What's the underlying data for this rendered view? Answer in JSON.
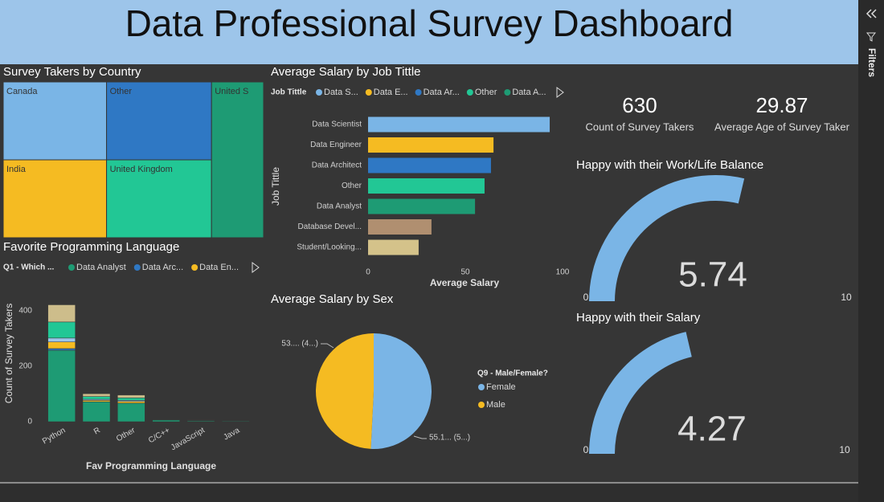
{
  "header": {
    "title": "Data Professional Survey Dashboard"
  },
  "filters_pane": {
    "label": "Filters"
  },
  "cards": [
    {
      "value": 630,
      "label": "Count of Survey Takers"
    },
    {
      "value": 29.87,
      "label": "Average Age of Survey Taker"
    }
  ],
  "chart_data": [
    {
      "type": "treemap",
      "title": "Survey Takers by Country",
      "categories": [
        "Canada",
        "Other",
        "United S",
        "India",
        "United Kingdom"
      ],
      "values": [
        125,
        127,
        126,
        125,
        127
      ],
      "colors": [
        "#7ab5e6",
        "#2f78c4",
        "#1e9b74",
        "#f5bb22",
        "#22c795"
      ]
    },
    {
      "type": "stacked_bar",
      "title": "Favorite Programming Language",
      "legend_title": "Q1 - Which ...",
      "x_label": "Fav Programming Language",
      "y_label": "Count of Survey Takers",
      "categories": [
        "Python",
        "R",
        "Other",
        "C/C++",
        "JavaScript",
        "Java"
      ],
      "series": [
        {
          "name": "Data Analyst",
          "color": "#1e9b74",
          "values": [
            258,
            72,
            67,
            6,
            3,
            2
          ]
        },
        {
          "name": "Data Arc...",
          "color": "#2f78c4",
          "values": [
            6,
            0,
            0,
            0,
            0,
            0
          ]
        },
        {
          "name": "Data En...",
          "color": "#f5bb22",
          "values": [
            24,
            5,
            6,
            0,
            1,
            0
          ]
        },
        {
          "color": "#9cc6ea",
          "values": [
            14,
            4,
            4,
            1,
            0,
            0
          ]
        },
        {
          "color": "#22c795",
          "values": [
            58,
            10,
            9,
            1,
            1,
            0
          ]
        },
        {
          "color": "#cdbd8b",
          "values": [
            62,
            10,
            10,
            0,
            1,
            0
          ]
        }
      ],
      "ylim": [
        0,
        435
      ],
      "yticks": [
        0,
        200,
        400
      ]
    },
    {
      "type": "hbar",
      "title": "Average Salary by Job Tittle",
      "x_label": "Average Salary",
      "y_label": "Job Tittle",
      "legend": {
        "title": "Job Tittle",
        "labels": [
          "Data S...",
          "Data E...",
          "Data Ar...",
          "Other",
          "Data A..."
        ]
      },
      "categories": [
        "Data Scientist",
        "Data Engineer",
        "Data Architect",
        "Other",
        "Data Analyst",
        "Database Devel...",
        "Student/Looking..."
      ],
      "values": [
        93.4,
        64.5,
        63.2,
        59.9,
        55.0,
        32.6,
        26.0
      ],
      "colors": [
        "#7ab5e6",
        "#f5bb22",
        "#2f78c4",
        "#22c795",
        "#1e9b74",
        "#b08f70",
        "#d4c28a"
      ],
      "xlim": [
        0,
        100
      ],
      "xticks": [
        0,
        50,
        100
      ]
    },
    {
      "type": "pie",
      "title": "Average Salary by Sex",
      "legend_title": "Q9 - Male/Female?",
      "categories": [
        "Female",
        "Male"
      ],
      "values": [
        55.1,
        53.4
      ],
      "value_labels": [
        "55.1... (5...)",
        "53.... (4...)"
      ],
      "colors": [
        "#7ab5e6",
        "#f5bb22"
      ]
    },
    {
      "type": "gauge",
      "title": "Happy with their Work/Life Balance",
      "value": 5.74,
      "min": 0,
      "max": 10,
      "color": "#7ab5e6"
    },
    {
      "type": "gauge",
      "title": "Happy with their Salary",
      "value": 4.27,
      "min": 0,
      "max": 10,
      "color": "#7ab5e6"
    }
  ]
}
